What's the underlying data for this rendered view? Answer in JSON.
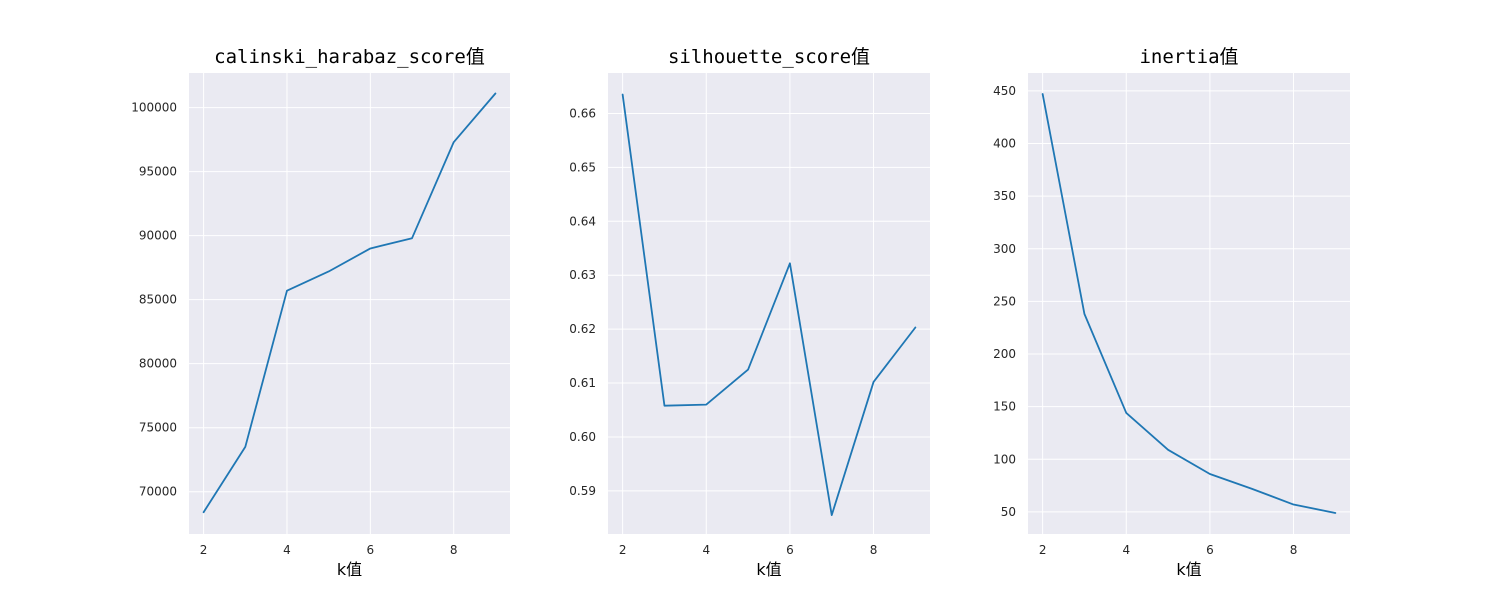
{
  "chart_data": [
    {
      "type": "line",
      "title": "calinski_harabaz_score值",
      "xlabel": "k值",
      "ylabel": "",
      "x": [
        2,
        3,
        4,
        5,
        6,
        7,
        8,
        9
      ],
      "series": [
        {
          "values": [
            68400,
            73500,
            85700,
            87200,
            89000,
            89800,
            97300,
            101100
          ]
        }
      ],
      "xlim": [
        1.65,
        9.35
      ],
      "ylim": [
        66700,
        102700
      ],
      "xticks": [
        2,
        4,
        6,
        8
      ],
      "yticks": [
        70000,
        75000,
        80000,
        85000,
        90000,
        95000,
        100000
      ],
      "grid": true,
      "color": "#1f77b4"
    },
    {
      "type": "line",
      "title": "silhouette_score值",
      "xlabel": "k值",
      "ylabel": "",
      "x": [
        2,
        3,
        4,
        5,
        6,
        7,
        8,
        9
      ],
      "series": [
        {
          "values": [
            0.6635,
            0.6058,
            0.606,
            0.6125,
            0.6322,
            0.5855,
            0.6102,
            0.6203
          ]
        }
      ],
      "xlim": [
        1.65,
        9.35
      ],
      "ylim": [
        0.582,
        0.6675
      ],
      "xticks": [
        2,
        4,
        6,
        8
      ],
      "yticks": [
        0.59,
        0.6,
        0.61,
        0.62,
        0.63,
        0.64,
        0.65,
        0.66
      ],
      "ytick_decimals": 2,
      "grid": true,
      "color": "#1f77b4"
    },
    {
      "type": "line",
      "title": "inertia值",
      "xlabel": "k值",
      "ylabel": "",
      "x": [
        2,
        3,
        4,
        5,
        6,
        7,
        8,
        9
      ],
      "series": [
        {
          "values": [
            447,
            238,
            144,
            109,
            86,
            72,
            57,
            49
          ]
        }
      ],
      "xlim": [
        1.65,
        9.35
      ],
      "ylim": [
        29,
        467
      ],
      "xticks": [
        2,
        4,
        6,
        8
      ],
      "yticks": [
        50,
        100,
        150,
        200,
        250,
        300,
        350,
        400,
        450
      ],
      "grid": true,
      "color": "#1f77b4"
    }
  ]
}
